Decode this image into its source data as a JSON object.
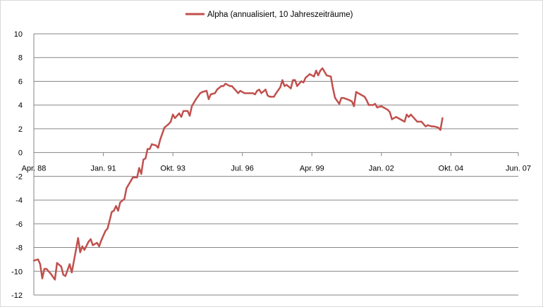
{
  "chart_data": {
    "type": "line",
    "title": "",
    "xlabel": "",
    "ylabel": "",
    "legend_position": "top",
    "grid": {
      "horizontal": true,
      "vertical": false
    },
    "ylim": [
      -12,
      10
    ],
    "y_ticks": [
      "-12",
      "-10",
      "-8",
      "-6",
      "-4",
      "-2",
      "0",
      "2",
      "4",
      "6",
      "8",
      "10"
    ],
    "xlim": [
      "1988-04",
      "2007-06"
    ],
    "x_ticks": [
      {
        "date": "1988-04",
        "label": "Apr. 88"
      },
      {
        "date": "1991-01",
        "label": "Jan. 91"
      },
      {
        "date": "1993-10",
        "label": "Okt. 93"
      },
      {
        "date": "1996-07",
        "label": "Jul. 96"
      },
      {
        "date": "1999-04",
        "label": "Apr. 99"
      },
      {
        "date": "2002-01",
        "label": "Jan. 02"
      },
      {
        "date": "2004-10",
        "label": "Okt. 04"
      },
      {
        "date": "2007-06",
        "label": "Jun. 07"
      }
    ],
    "series": [
      {
        "name": "Alpha (annualisiert, 10 Jahreszeiträume)",
        "color": "#C0504D",
        "x": [
          "1988-04",
          "1988-06",
          "1988-07",
          "1988-08",
          "1988-09",
          "1988-10",
          "1988-12",
          "1989-02",
          "1989-03",
          "1989-05",
          "1989-06",
          "1989-07",
          "1989-09",
          "1989-10",
          "1989-12",
          "1990-01",
          "1990-02",
          "1990-03",
          "1990-04",
          "1990-06",
          "1990-07",
          "1990-08",
          "1990-10",
          "1990-11",
          "1990-12",
          "1991-02",
          "1991-03",
          "1991-05",
          "1991-06",
          "1991-07",
          "1991-08",
          "1991-09",
          "1991-11",
          "1991-12",
          "1992-02",
          "1992-03",
          "1992-05",
          "1992-06",
          "1992-07",
          "1992-08",
          "1992-09",
          "1992-10",
          "1992-11",
          "1992-12",
          "1993-02",
          "1993-03",
          "1993-04",
          "1993-06",
          "1993-08",
          "1993-09",
          "1993-10",
          "1993-11",
          "1994-01",
          "1994-02",
          "1994-03",
          "1994-05",
          "1994-06",
          "1994-07",
          "1994-09",
          "1994-11",
          "1994-12",
          "1995-02",
          "1995-03",
          "1995-04",
          "1995-06",
          "1995-07",
          "1995-09",
          "1995-10",
          "1995-11",
          "1996-01",
          "1996-02",
          "1996-04",
          "1996-05",
          "1996-06",
          "1996-08",
          "1996-10",
          "1996-12",
          "1997-01",
          "1997-02",
          "1997-03",
          "1997-04",
          "1997-06",
          "1997-07",
          "1997-08",
          "1997-10",
          "1997-11",
          "1998-01",
          "1998-02",
          "1998-03",
          "1998-04",
          "1998-06",
          "1998-07",
          "1998-08",
          "1998-09",
          "1998-11",
          "1998-12",
          "1999-01",
          "1999-03",
          "1999-05",
          "1999-06",
          "1999-07",
          "1999-08",
          "1999-09",
          "1999-11",
          "2000-01",
          "2000-02",
          "2000-03",
          "2000-05",
          "2000-06",
          "2000-07",
          "2000-10",
          "2000-11",
          "2000-12",
          "2001-01",
          "2001-03",
          "2001-05",
          "2001-06",
          "2001-07",
          "2001-09",
          "2001-10",
          "2001-11",
          "2002-01",
          "2002-02",
          "2002-04",
          "2002-05",
          "2002-06",
          "2002-08",
          "2002-09",
          "2002-11",
          "2002-12",
          "2003-01",
          "2003-02",
          "2003-03",
          "2003-05",
          "2003-06",
          "2003-08",
          "2003-09",
          "2003-10",
          "2003-11",
          "2004-01",
          "2004-02",
          "2004-04",
          "2004-05",
          "2004-06"
        ],
        "values": [
          -9.1,
          -9.0,
          -9.4,
          -10.6,
          -9.8,
          -9.8,
          -10.2,
          -10.7,
          -9.3,
          -9.6,
          -10.3,
          -10.4,
          -9.4,
          -10.1,
          -8.2,
          -7.2,
          -8.4,
          -7.9,
          -8.2,
          -7.5,
          -7.3,
          -7.8,
          -7.6,
          -7.9,
          -7.4,
          -6.6,
          -6.4,
          -5.0,
          -4.9,
          -4.5,
          -4.9,
          -4.2,
          -3.9,
          -3.0,
          -2.4,
          -2.1,
          -2.1,
          -1.3,
          -1.8,
          -0.6,
          -0.5,
          0.3,
          0.3,
          0.7,
          0.6,
          0.4,
          1.1,
          2.1,
          2.4,
          2.6,
          3.2,
          2.9,
          3.3,
          3.0,
          3.5,
          3.5,
          3.1,
          3.9,
          4.5,
          5.0,
          5.1,
          5.2,
          4.5,
          4.9,
          5.0,
          5.3,
          5.6,
          5.6,
          5.8,
          5.6,
          5.6,
          5.2,
          5.0,
          5.2,
          5.0,
          5.0,
          5.0,
          4.9,
          5.2,
          5.3,
          5.0,
          5.3,
          4.8,
          4.7,
          4.7,
          5.0,
          5.5,
          6.1,
          5.6,
          5.7,
          5.4,
          6.1,
          6.1,
          5.6,
          6.0,
          5.9,
          6.3,
          6.6,
          6.4,
          6.9,
          6.5,
          6.9,
          7.1,
          6.5,
          6.4,
          5.4,
          4.6,
          4.1,
          4.6,
          4.6,
          4.4,
          4.3,
          3.9,
          5.1,
          4.9,
          4.7,
          4.4,
          4.0,
          4.0,
          4.1,
          3.8,
          3.9,
          3.8,
          3.6,
          3.4,
          2.8,
          3.0,
          2.9,
          2.7,
          2.6,
          3.2,
          3.0,
          3.2,
          2.8,
          2.6,
          2.6,
          2.4,
          2.2,
          2.3,
          2.2,
          2.2,
          2.1,
          1.9,
          2.9
        ]
      }
    ]
  }
}
